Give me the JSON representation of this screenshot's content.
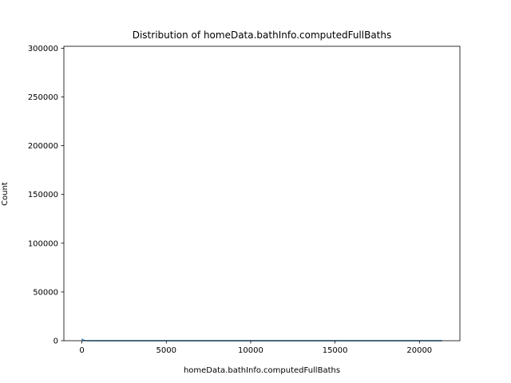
{
  "chart_data": {
    "type": "area",
    "title": "Distribution of homeData.bathInfo.computedFullBaths",
    "xlabel": "homeData.bathInfo.computedFullBaths",
    "ylabel": "Count",
    "xlim": [
      -1070,
      22400
    ],
    "ylim": [
      0,
      302000
    ],
    "x_ticks": [
      0,
      5000,
      10000,
      15000,
      20000
    ],
    "y_ticks": [
      0,
      50000,
      100000,
      150000,
      200000,
      250000,
      300000
    ],
    "x_tick_labels": [
      "0",
      "5000",
      "10000",
      "15000",
      "20000"
    ],
    "y_tick_labels": [
      "0",
      "50000",
      "100000",
      "150000",
      "200000",
      "250000",
      "300000"
    ],
    "grid": false,
    "series": [
      {
        "color": "#1f77b4",
        "x": [
          0,
          50,
          200,
          500,
          1000,
          2000,
          5000,
          10000,
          15000,
          20000,
          21350
        ],
        "values": [
          1900,
          600,
          150,
          20,
          5,
          0,
          0,
          0,
          0,
          0,
          0
        ]
      }
    ]
  }
}
